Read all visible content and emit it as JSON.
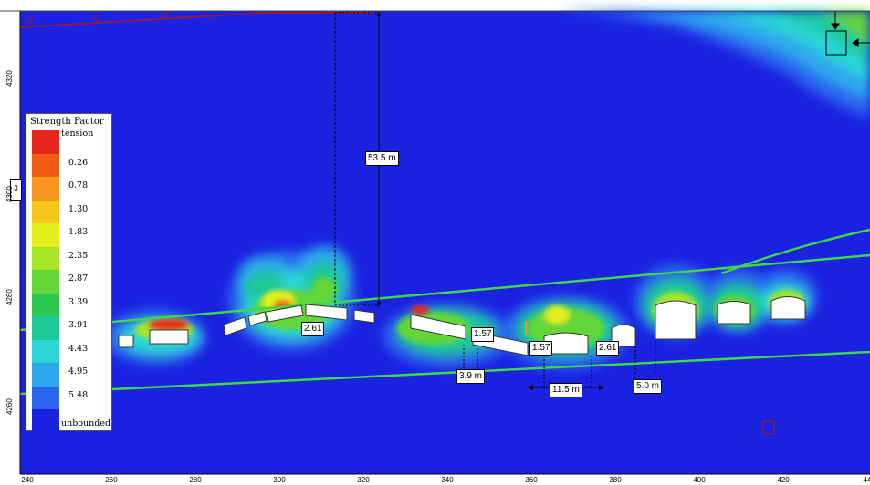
{
  "legend": {
    "title": "Strength Factor",
    "entries": [
      {
        "label": "tension",
        "color": "#e8271c"
      },
      {
        "label": "0.26",
        "color": "#f35a14"
      },
      {
        "label": "0.78",
        "color": "#f7951c"
      },
      {
        "label": "1.30",
        "color": "#f5c61c"
      },
      {
        "label": "1.83",
        "color": "#e3ee1a"
      },
      {
        "label": "2.35",
        "color": "#a7e42a"
      },
      {
        "label": "2.87",
        "color": "#63d638"
      },
      {
        "label": "3.39",
        "color": "#2cc84e"
      },
      {
        "label": "3.91",
        "color": "#1ec99a"
      },
      {
        "label": "4.43",
        "color": "#2cd6d6"
      },
      {
        "label": "4.95",
        "color": "#2fa7ee"
      },
      {
        "label": "5.48",
        "color": "#2c66ef"
      },
      {
        "label": "unbounded",
        "color": "#1a22e0"
      }
    ]
  },
  "dimensions": {
    "height": "53.5 m",
    "v1": "2.61",
    "v2": "1.57",
    "v3": "1.57",
    "v4": "2.61",
    "w1": "3.9 m",
    "w2": "11.5 m",
    "w3": "5.0 m"
  },
  "axes": {
    "x_ticks": [
      "240",
      "260",
      "280",
      "300",
      "320",
      "340",
      "360",
      "380",
      "400",
      "420",
      "44"
    ],
    "y_ticks": [
      "4320",
      "4300",
      "4280",
      "4260"
    ]
  },
  "side_label": "3",
  "colors": {
    "background_blue": "#1a22e0",
    "boundary_green": "#3ed64a",
    "surface_line": "#8b1a4a"
  }
}
